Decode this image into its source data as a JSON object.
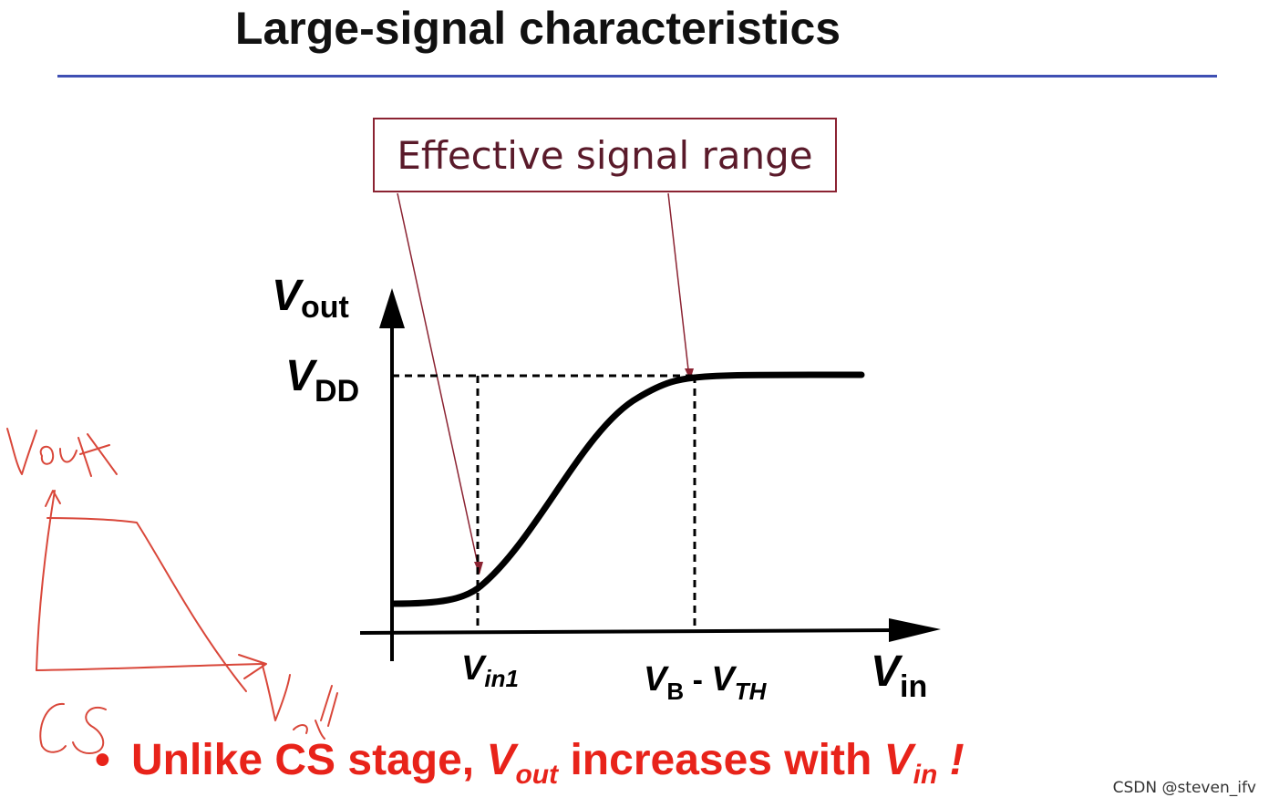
{
  "slide": {
    "title": "Large-signal characteristics",
    "annotation_box": "Effective signal range",
    "watermark": "CSDN @steven_ifv"
  },
  "diagram": {
    "y_axis": {
      "main": "V",
      "sub": "out"
    },
    "vdd_label": {
      "main": "V",
      "sub": "DD"
    },
    "x_axis": {
      "main": "V",
      "sub": "in"
    },
    "tick_vin1": {
      "main": "V",
      "sub": "in1"
    },
    "tick_vb_vth": {
      "main1": "V",
      "sub1": "B",
      "sep": " - ",
      "main2": "V",
      "sub2": "TH"
    }
  },
  "bullet": {
    "symbol": "•",
    "text1": "Unlike CS stage, ",
    "vout_main": "V",
    "vout_sub": "out",
    "text2": " increases with ",
    "vin_main": "V",
    "vin_sub": "in",
    "text3": " !"
  },
  "handwritten_sketch": {
    "labels": [
      "Vout",
      "Vin",
      "CS"
    ],
    "ink_color": "#d9473a"
  },
  "colors": {
    "rule": "#3f4fb3",
    "box_border": "#8b2332",
    "box_text": "#5a1a2a",
    "bullet_text": "#e8231a"
  }
}
